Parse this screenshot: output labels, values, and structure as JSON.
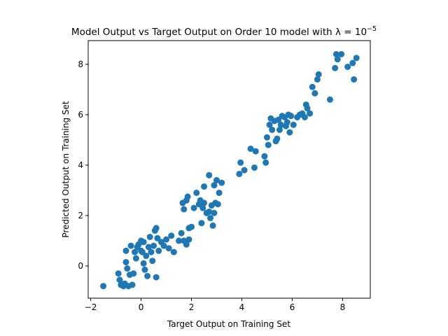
{
  "chart_data": {
    "type": "scatter",
    "title": "Model Output vs Target Output on Order 10 model with λ = 10",
    "title_exponent": "−5",
    "x_label": "Target Output on Training Set",
    "y_label": "Predicted Output on Training Set",
    "color": "#1f77b4",
    "xlim": [
      -2.1,
      9.1
    ],
    "ylim": [
      -1.28,
      8.94
    ],
    "xticks": [
      {
        "value": -2,
        "label": "−2"
      },
      0,
      2,
      4,
      6,
      8
    ],
    "yticks": [
      0,
      2,
      4,
      6,
      8
    ],
    "x": [
      -1.5,
      -0.9,
      -0.85,
      -0.8,
      -0.7,
      -0.65,
      -0.6,
      -0.55,
      -0.6,
      -0.5,
      -0.45,
      -0.4,
      -0.35,
      -0.3,
      -0.25,
      -0.2,
      -0.15,
      -0.1,
      0,
      0,
      0.05,
      0.1,
      0.1,
      0.15,
      0.2,
      0.25,
      0.3,
      0.35,
      0.4,
      0.45,
      0.5,
      0.55,
      0.6,
      0.6,
      0.65,
      0.7,
      0.8,
      0.9,
      1.0,
      1.1,
      1.2,
      1.3,
      1.5,
      1.6,
      1.7,
      1.8,
      1.9,
      2.0,
      1.9,
      1.8,
      1.65,
      1.7,
      1.85,
      2.1,
      2.2,
      2.3,
      2.35,
      2.4,
      2.45,
      2.5,
      2.6,
      2.7,
      2.75,
      2.8,
      2.85,
      2.9,
      2.95,
      3.0,
      2.9,
      3.05,
      3.1,
      3.2,
      2.5,
      2.7,
      3.9,
      3.95,
      4.1,
      4.35,
      4.5,
      4.55,
      4.9,
      4.95,
      5.0,
      5.05,
      5.1,
      5.15,
      5.2,
      5.3,
      5.35,
      5.4,
      5.45,
      5.5,
      5.55,
      5.6,
      5.7,
      5.75,
      5.8,
      5.85,
      5.9,
      5.95,
      6.05,
      6.2,
      6.3,
      6.4,
      6.5,
      6.55,
      6.6,
      6.7,
      6.8,
      6.9,
      7.0,
      7.05,
      7.5,
      7.7,
      7.75,
      7.8,
      7.95,
      8.2,
      8.4,
      8.45,
      8.55
    ],
    "values": [
      -0.8,
      -0.3,
      -0.55,
      -0.75,
      -0.8,
      -0.7,
      0.15,
      -0.1,
      0.6,
      -0.8,
      -0.35,
      0.8,
      -0.75,
      -0.3,
      0.55,
      0.3,
      0.75,
      0.85,
      1.0,
      0.6,
      0.55,
      0.95,
      0.1,
      -0.15,
      0.4,
      -0.4,
      0.75,
      1.15,
      0.55,
      0.2,
      0.8,
      1.4,
      1.5,
      -0.45,
      1.1,
      0.6,
      0.95,
      0.8,
      1.05,
      0.7,
      1.2,
      0.55,
      1.0,
      1.3,
      1.0,
      0.85,
      1.5,
      1.55,
      1.05,
      2.6,
      2.5,
      2.25,
      2.75,
      2.3,
      2.9,
      2.45,
      2.6,
      1.7,
      2.3,
      2.5,
      2.1,
      2.15,
      1.9,
      2.4,
      1.6,
      2.1,
      2.5,
      3.4,
      3.2,
      2.45,
      2.9,
      3.3,
      3.15,
      3.6,
      3.65,
      4.1,
      3.8,
      4.65,
      3.9,
      4.55,
      4.35,
      4.1,
      5.1,
      4.8,
      5.6,
      5.85,
      5.4,
      5.75,
      4.95,
      5.05,
      5.8,
      5.4,
      5.6,
      5.95,
      5.9,
      5.55,
      5.7,
      6.0,
      5.3,
      5.95,
      5.6,
      5.9,
      6.0,
      6.05,
      5.9,
      6.4,
      6.25,
      6.05,
      7.1,
      6.85,
      7.4,
      7.6,
      6.6,
      7.85,
      8.4,
      8.2,
      8.4,
      7.9,
      8.05,
      7.4,
      8.25
    ]
  }
}
